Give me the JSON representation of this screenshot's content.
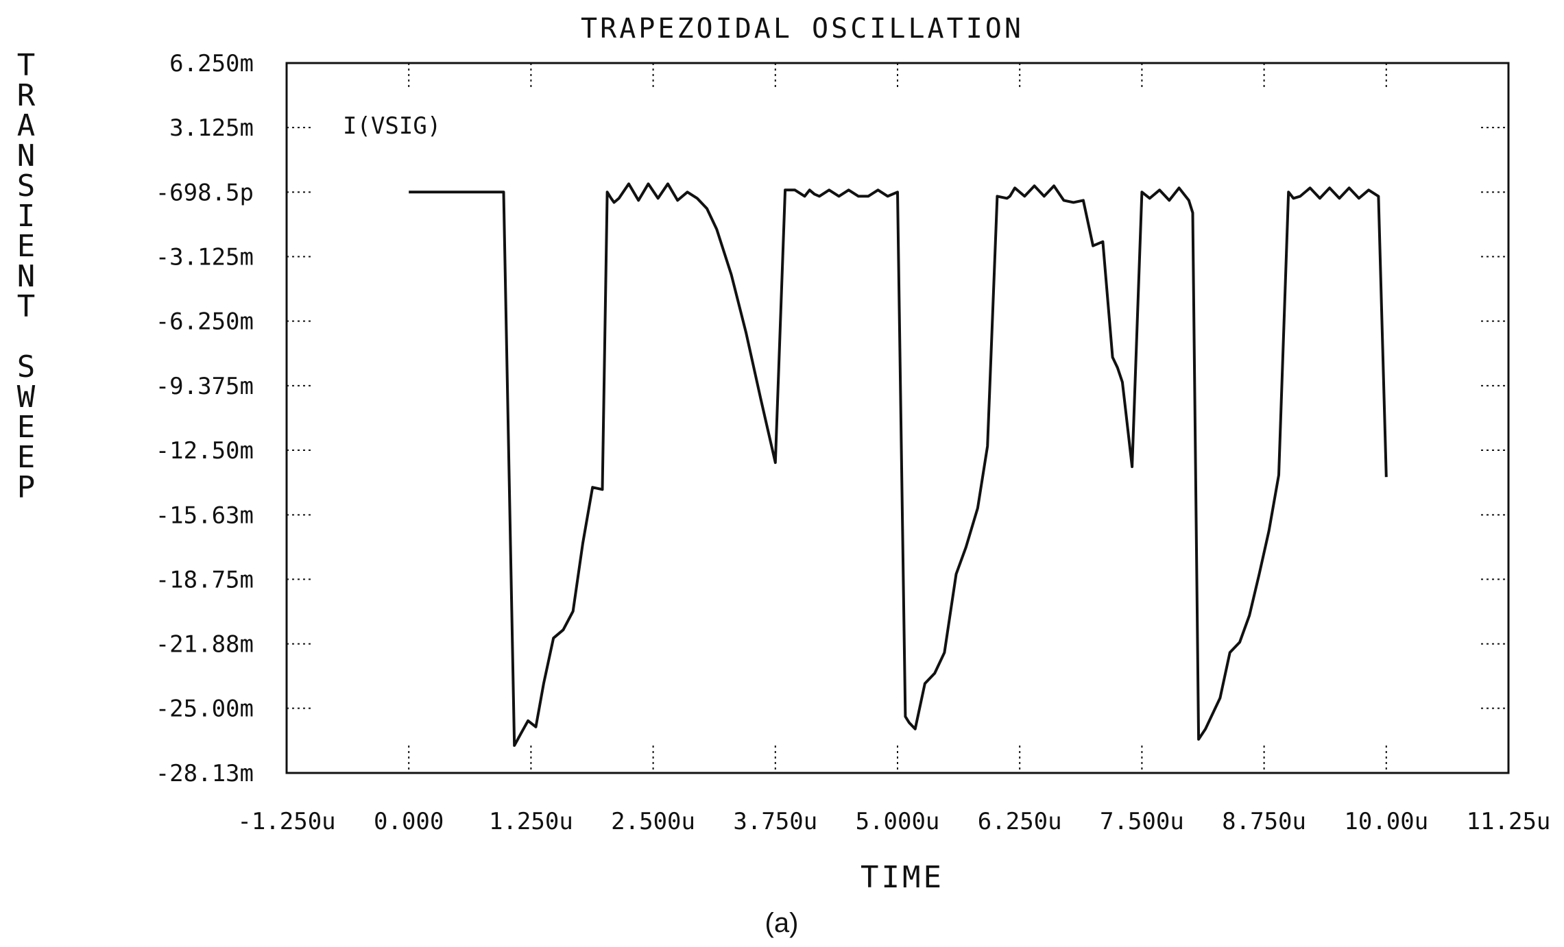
{
  "chart_data": {
    "type": "line",
    "title": "TRAPEZOIDAL OSCILLATION",
    "xlabel": "TIME",
    "ylabel": "TRANSIENT SWEEP",
    "caption": "(a)",
    "xlim": [
      -1.25,
      11.25
    ],
    "ylim": [
      -28.13,
      6.25
    ],
    "x_ticks": [
      {
        "value": -1.25,
        "label": "-1.250u"
      },
      {
        "value": 0,
        "label": "0.000"
      },
      {
        "value": 1.25,
        "label": "1.250u"
      },
      {
        "value": 2.5,
        "label": "2.500u"
      },
      {
        "value": 3.75,
        "label": "3.750u"
      },
      {
        "value": 5.0,
        "label": "5.000u"
      },
      {
        "value": 6.25,
        "label": "6.250u"
      },
      {
        "value": 7.5,
        "label": "7.500u"
      },
      {
        "value": 8.75,
        "label": "8.750u"
      },
      {
        "value": 10.0,
        "label": "10.00u"
      },
      {
        "value": 11.25,
        "label": "11.25u"
      }
    ],
    "y_ticks": [
      {
        "value": 6.25,
        "label": "6.250m"
      },
      {
        "value": 3.125,
        "label": "3.125m"
      },
      {
        "value": 0,
        "label": "-698.5p"
      },
      {
        "value": -3.125,
        "label": "-3.125m"
      },
      {
        "value": -6.25,
        "label": "-6.250m"
      },
      {
        "value": -9.375,
        "label": "-9.375m"
      },
      {
        "value": -12.5,
        "label": "-12.50m"
      },
      {
        "value": -15.63,
        "label": "-15.63m"
      },
      {
        "value": -18.75,
        "label": "-18.75m"
      },
      {
        "value": -21.88,
        "label": "-21.88m"
      },
      {
        "value": -25.0,
        "label": "-25.00m"
      },
      {
        "value": -28.13,
        "label": "-28.13m"
      }
    ],
    "series": [
      {
        "name": "I(VSIG)",
        "x": [
          0,
          0.97,
          1.08,
          1.15,
          1.22,
          1.3,
          1.38,
          1.48,
          1.58,
          1.68,
          1.78,
          1.88,
          1.98,
          2.03,
          2.07,
          2.1,
          2.15,
          2.25,
          2.35,
          2.45,
          2.55,
          2.65,
          2.75,
          2.85,
          2.95,
          3.05,
          3.15,
          3.3,
          3.45,
          3.6,
          3.75,
          3.85,
          3.95,
          4.05,
          4.1,
          4.15,
          4.2,
          4.3,
          4.4,
          4.5,
          4.6,
          4.7,
          4.8,
          4.9,
          5.0,
          5.08,
          5.12,
          5.18,
          5.28,
          5.38,
          5.48,
          5.6,
          5.7,
          5.82,
          5.92,
          6.02,
          6.12,
          6.15,
          6.2,
          6.3,
          6.4,
          6.5,
          6.6,
          6.7,
          6.8,
          6.9,
          7.0,
          7.1,
          7.15,
          7.2,
          7.25,
          7.3,
          7.32,
          7.4,
          7.5,
          7.58,
          7.68,
          7.78,
          7.88,
          7.98,
          8.02,
          8.08,
          8.15,
          8.2,
          8.3,
          8.4,
          8.5,
          8.6,
          8.7,
          8.8,
          8.9,
          9.0,
          9.05,
          9.12,
          9.22,
          9.32,
          9.42,
          9.52,
          9.62,
          9.72,
          9.82,
          9.92,
          10.0
        ],
        "values": [
          0,
          0,
          -26.8,
          -26.2,
          -25.6,
          -25.9,
          -23.8,
          -21.6,
          -21.2,
          -20.3,
          -17.0,
          -14.3,
          -14.4,
          0,
          -0.3,
          -0.5,
          -0.3,
          0.4,
          -0.4,
          0.4,
          -0.3,
          0.4,
          -0.4,
          0,
          -0.3,
          -0.8,
          -1.8,
          -4.0,
          -6.8,
          -10.0,
          -13.1,
          0.1,
          0.1,
          -0.2,
          0.1,
          -0.1,
          -0.2,
          0.1,
          -0.2,
          0.1,
          -0.2,
          -0.2,
          0.1,
          -0.2,
          0,
          -25.4,
          -25.7,
          -26.0,
          -23.8,
          -23.3,
          -22.3,
          -18.5,
          -17.2,
          -15.3,
          -12.3,
          -0.2,
          -0.3,
          -0.2,
          0.2,
          -0.2,
          0.3,
          -0.2,
          0.3,
          -0.4,
          -0.5,
          -0.4,
          -2.6,
          -2.4,
          -5.2,
          -8.0,
          -8.5,
          -9.2,
          -10.0,
          -13.3,
          0,
          -0.3,
          0.1,
          -0.4,
          0.2,
          -0.4,
          -1.0,
          -26.5,
          -26.0,
          -25.5,
          -24.5,
          -22.3,
          -21.8,
          -20.5,
          -18.5,
          -16.4,
          -13.7,
          0,
          -0.3,
          -0.2,
          0.2,
          -0.3,
          0.2,
          -0.3,
          0.2,
          -0.3,
          0.1,
          -0.2,
          -13.8
        ]
      }
    ],
    "grid": false,
    "legend": "top-left"
  }
}
